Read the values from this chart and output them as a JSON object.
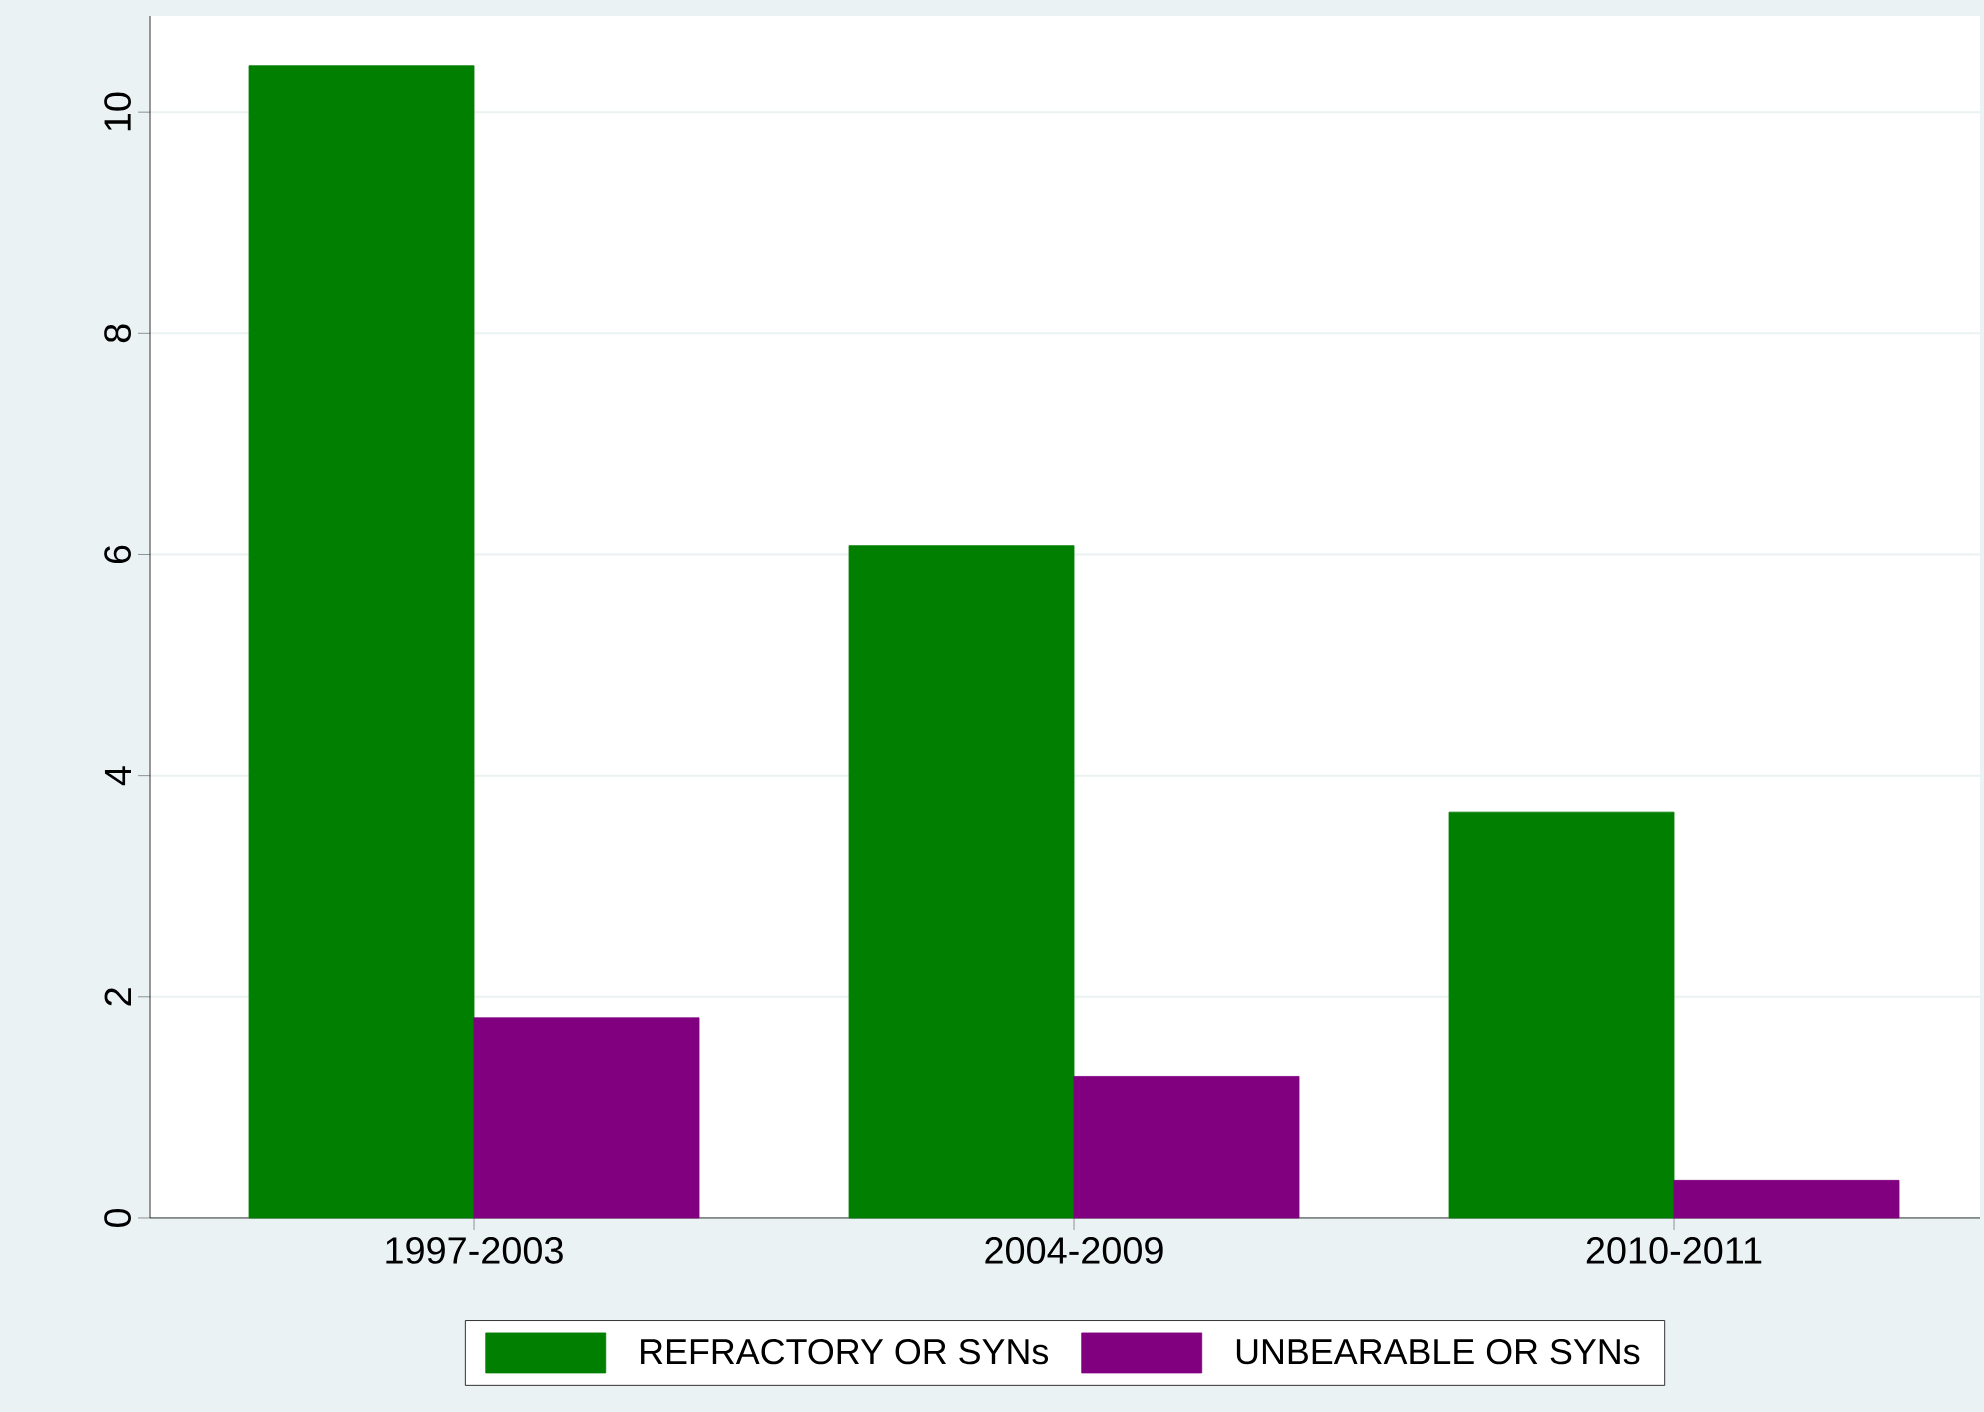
{
  "chart_data": {
    "type": "bar",
    "categories": [
      "1997-2003",
      "2004-2009",
      "2010-2011"
    ],
    "series": [
      {
        "name": "REFRACTORY OR SYNs",
        "color": "#007f00",
        "values": [
          10.42,
          6.08,
          3.67
        ]
      },
      {
        "name": "UNBEARABLE OR SYNs",
        "color": "#800080",
        "values": [
          1.81,
          1.28,
          0.34
        ]
      }
    ],
    "ylim": [
      0,
      10.87
    ],
    "yticks": [
      0,
      2,
      4,
      6,
      8,
      10
    ],
    "grid": "y",
    "legend": "bottom"
  }
}
